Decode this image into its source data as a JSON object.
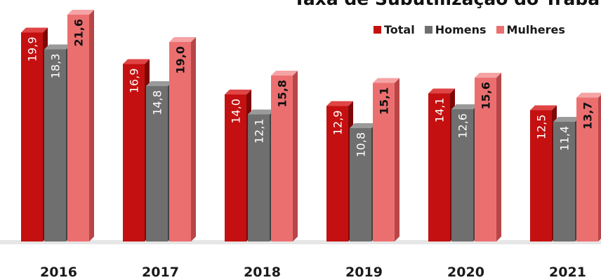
{
  "chart_data": {
    "type": "bar",
    "title": "Taxa de Subutilização do Traba",
    "categories": [
      "2016",
      "2017",
      "2018",
      "2019",
      "2020",
      "2021"
    ],
    "series": [
      {
        "name": "Total",
        "values": [
          19.9,
          16.9,
          14.0,
          12.9,
          14.1,
          12.5
        ]
      },
      {
        "name": "Homens",
        "values": [
          18.3,
          14.8,
          12.1,
          10.8,
          12.6,
          11.4
        ]
      },
      {
        "name": "Mulheres",
        "values": [
          21.6,
          19.0,
          15.8,
          15.1,
          15.6,
          13.7
        ]
      }
    ],
    "data_labels": [
      [
        "19,9",
        "16,9",
        "14,0",
        "12,9",
        "14,1",
        "12,5"
      ],
      [
        "18,3",
        "14,8",
        "12,1",
        "10,8",
        "12,6",
        "11,4"
      ],
      [
        "21,6",
        "19,0",
        "15,8",
        "15,1",
        "15,6",
        "13,7"
      ]
    ],
    "colors": {
      "Total": {
        "front": "#c41010",
        "side": "#7e0808",
        "top": "#e04545",
        "label": "#ffffff"
      },
      "Homens": {
        "front": "#6f6f6f",
        "side": "#434343",
        "top": "#9a9a9a",
        "label": "#ffffff"
      },
      "Mulheres": {
        "front": "#ec6f70",
        "side": "#b84647",
        "top": "#f5a3a4",
        "label": "#111111"
      }
    },
    "floor_color": "#e6e6e6",
    "legend_position": "top-right",
    "grid": false,
    "ylim": [
      0,
      22
    ]
  }
}
